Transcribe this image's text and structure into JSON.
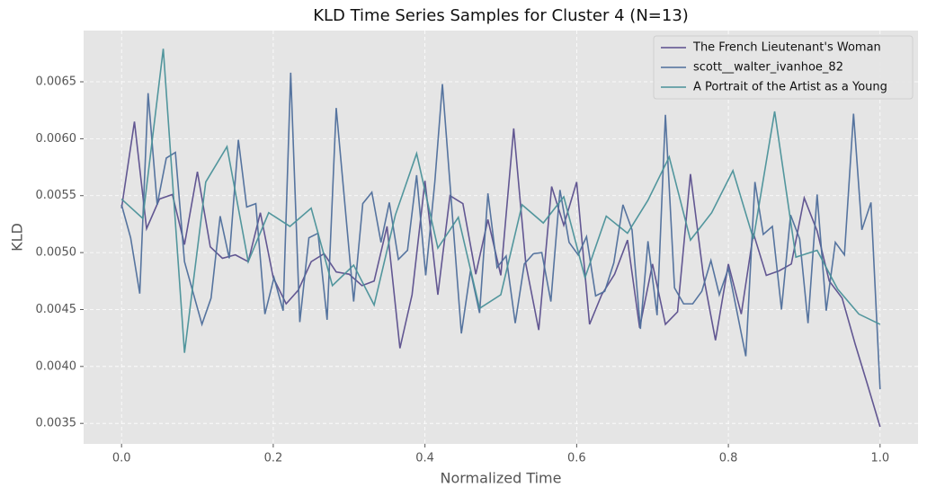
{
  "chart_data": {
    "type": "line",
    "title": "KLD Time Series Samples for Cluster 4 (N=13)",
    "xlabel": "Normalized Time",
    "ylabel": "KLD",
    "xlim": [
      -0.05,
      1.05
    ],
    "ylim": [
      0.00332,
      0.00695
    ],
    "xticks": [
      {
        "value": 0,
        "label": "0.0"
      },
      0.2,
      0.4,
      0.6,
      0.8,
      {
        "value": 1,
        "label": "1.0"
      }
    ],
    "yticks": [
      0.0035,
      {
        "value": 0.004,
        "label": "0.0040"
      },
      0.0045,
      {
        "value": 0.005,
        "label": "0.0050"
      },
      0.0055,
      {
        "value": 0.006,
        "label": "0.0060"
      },
      0.0065
    ],
    "grid": true,
    "legend": "upper right",
    "series": [
      {
        "name": "The French Lieutenant's Woman",
        "color": "#5b4f8d",
        "x": [
          0,
          0.017,
          0.033,
          0.05,
          0.067,
          0.083,
          0.1,
          0.117,
          0.133,
          0.15,
          0.167,
          0.183,
          0.2,
          0.217,
          0.233,
          0.25,
          0.267,
          0.283,
          0.3,
          0.317,
          0.333,
          0.35,
          0.367,
          0.383,
          0.4,
          0.417,
          0.433,
          0.45,
          0.467,
          0.483,
          0.5,
          0.517,
          0.533,
          0.55,
          0.567,
          0.583,
          0.6,
          0.617,
          0.633,
          0.65,
          0.667,
          0.683,
          0.7,
          0.717,
          0.733,
          0.75,
          0.767,
          0.783,
          0.8,
          0.817,
          0.833,
          0.85,
          0.867,
          0.883,
          0.9,
          0.917,
          0.933,
          0.95,
          0.967,
          0.983,
          1
        ],
        "values": [
          0.00539,
          0.00615,
          0.00521,
          0.00547,
          0.00551,
          0.00507,
          0.00571,
          0.00505,
          0.00495,
          0.00498,
          0.00492,
          0.00535,
          0.00478,
          0.00455,
          0.00467,
          0.00492,
          0.00499,
          0.00483,
          0.00481,
          0.00471,
          0.00475,
          0.00523,
          0.00416,
          0.00463,
          0.00563,
          0.00463,
          0.0055,
          0.00543,
          0.00481,
          0.00529,
          0.0048,
          0.00609,
          0.0049,
          0.00432,
          0.00558,
          0.00524,
          0.00562,
          0.00437,
          0.00463,
          0.00481,
          0.00511,
          0.00434,
          0.0049,
          0.00437,
          0.00448,
          0.00569,
          0.0048,
          0.00423,
          0.0049,
          0.00446,
          0.00517,
          0.0048,
          0.00484,
          0.0049,
          0.00548,
          0.00519,
          0.00475,
          0.0046,
          0.0042,
          0.00385,
          0.00347
        ]
      },
      {
        "name": "scott__walter_ivanhoe_82",
        "color": "#4e6e9b",
        "x": [
          0,
          0.012,
          0.024,
          0.035,
          0.047,
          0.059,
          0.071,
          0.083,
          0.106,
          0.118,
          0.13,
          0.142,
          0.154,
          0.165,
          0.177,
          0.189,
          0.201,
          0.213,
          0.223,
          0.235,
          0.247,
          0.259,
          0.271,
          0.283,
          0.306,
          0.318,
          0.33,
          0.342,
          0.353,
          0.365,
          0.377,
          0.389,
          0.401,
          0.413,
          0.423,
          0.448,
          0.46,
          0.472,
          0.483,
          0.495,
          0.507,
          0.519,
          0.531,
          0.543,
          0.554,
          0.566,
          0.578,
          0.59,
          0.602,
          0.613,
          0.625,
          0.637,
          0.649,
          0.661,
          0.673,
          0.684,
          0.694,
          0.706,
          0.717,
          0.729,
          0.741,
          0.753,
          0.765,
          0.777,
          0.788,
          0.8,
          0.823,
          0.835,
          0.846,
          0.858,
          0.87,
          0.882,
          0.894,
          0.905,
          0.917,
          0.929,
          0.941,
          0.953,
          0.965,
          0.976,
          0.988,
          1
        ],
        "values": [
          0.00542,
          0.00513,
          0.00464,
          0.0064,
          0.00542,
          0.00583,
          0.00588,
          0.00492,
          0.00437,
          0.0046,
          0.00532,
          0.00495,
          0.00599,
          0.0054,
          0.00543,
          0.00446,
          0.00478,
          0.00449,
          0.00658,
          0.00439,
          0.00513,
          0.00517,
          0.00441,
          0.00627,
          0.00457,
          0.00543,
          0.00553,
          0.00509,
          0.00544,
          0.00494,
          0.00502,
          0.00568,
          0.0048,
          0.00562,
          0.00648,
          0.00429,
          0.00484,
          0.00447,
          0.00552,
          0.00487,
          0.00497,
          0.00438,
          0.0049,
          0.00499,
          0.005,
          0.00457,
          0.00555,
          0.00509,
          0.00498,
          0.00514,
          0.00462,
          0.00466,
          0.00491,
          0.00542,
          0.0052,
          0.00433,
          0.0051,
          0.00445,
          0.00621,
          0.00469,
          0.00455,
          0.00455,
          0.00466,
          0.00493,
          0.00463,
          0.00486,
          0.00409,
          0.00562,
          0.00516,
          0.00523,
          0.0045,
          0.00533,
          0.00512,
          0.00438,
          0.00551,
          0.00449,
          0.00509,
          0.00498,
          0.00622,
          0.0052,
          0.00544,
          0.0038
        ]
      },
      {
        "name": "A Portrait of the Artist as a Young",
        "color": "#4a9199",
        "x": [
          0,
          0.028,
          0.055,
          0.083,
          0.111,
          0.139,
          0.167,
          0.194,
          0.222,
          0.25,
          0.278,
          0.306,
          0.333,
          0.361,
          0.389,
          0.417,
          0.444,
          0.472,
          0.5,
          0.528,
          0.556,
          0.583,
          0.611,
          0.639,
          0.667,
          0.694,
          0.722,
          0.75,
          0.778,
          0.806,
          0.833,
          0.861,
          0.889,
          0.917,
          0.944,
          0.972,
          1
        ],
        "values": [
          0.00547,
          0.0053,
          0.00679,
          0.00412,
          0.00562,
          0.00593,
          0.00492,
          0.00535,
          0.00523,
          0.00539,
          0.00471,
          0.00489,
          0.00454,
          0.00533,
          0.00587,
          0.00504,
          0.00531,
          0.00451,
          0.00463,
          0.00542,
          0.00526,
          0.00549,
          0.00478,
          0.00532,
          0.00517,
          0.00546,
          0.00584,
          0.00511,
          0.00535,
          0.00572,
          0.00512,
          0.00624,
          0.00496,
          0.00502,
          0.00468,
          0.00446,
          0.00437
        ]
      }
    ]
  }
}
